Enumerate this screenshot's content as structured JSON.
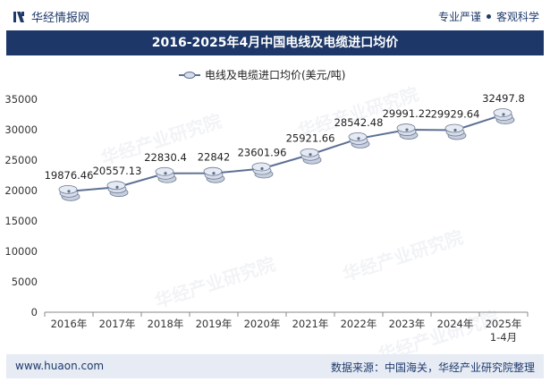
{
  "header": {
    "brand": "华经情报网",
    "tagline_left": "专业严谨",
    "tagline_right": "客观科学"
  },
  "chart_data": {
    "type": "line",
    "title": "2016-2025年4月中国电线及电缆进口均价",
    "legend": "电线及电缆进口均价(美元/吨)",
    "legend_position": "top-center",
    "categories": [
      "2016年",
      "2017年",
      "2018年",
      "2019年",
      "2020年",
      "2021年",
      "2022年",
      "2023年",
      "2024年",
      "2025年\n1-4月"
    ],
    "values": [
      19876.46,
      20557.13,
      22830.4,
      22842,
      23601.96,
      25921.66,
      28542.48,
      29991.22,
      29929.64,
      32497.8
    ],
    "data_labels": [
      "19876.46",
      "20557.13",
      "22830.4",
      "22842",
      "23601.96",
      "25921.66",
      "28542.48",
      "29991.22",
      "29929.64",
      "32497.8"
    ],
    "ylim": [
      0,
      35000
    ],
    "yticks": [
      0,
      5000,
      10000,
      15000,
      20000,
      25000,
      30000,
      35000
    ],
    "grid": false,
    "series_color": "#5d7093",
    "xlabel": "",
    "ylabel": ""
  },
  "watermark": "华经产业研究院",
  "footer": {
    "website": "www.huaon.com",
    "source": "数据来源：中国海关，华经产业研究院整理"
  }
}
